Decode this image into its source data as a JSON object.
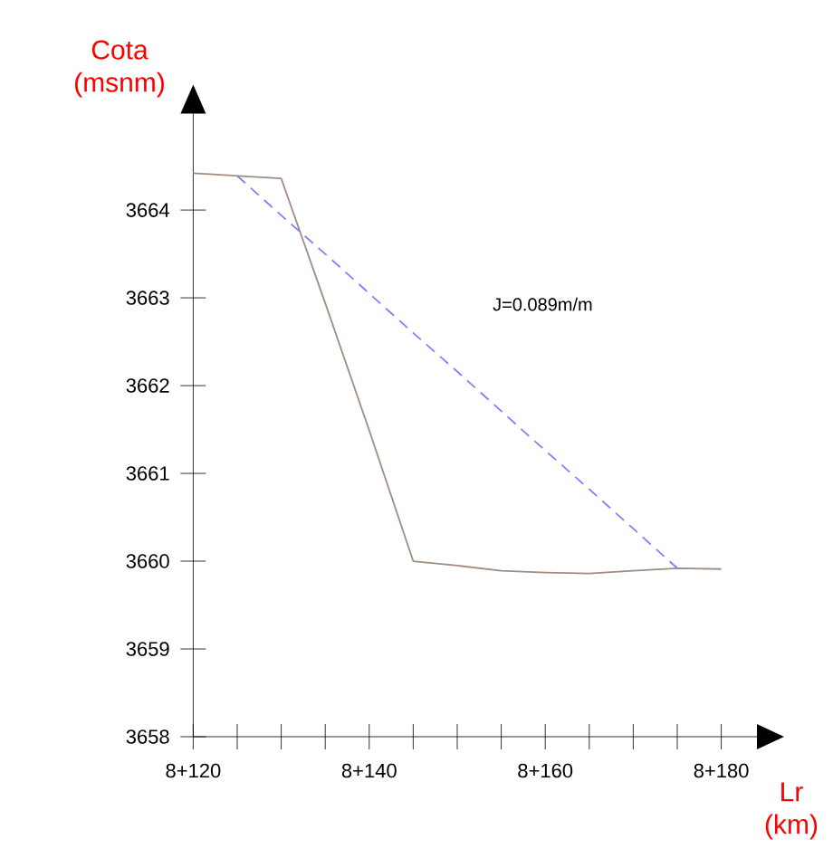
{
  "chart_data": {
    "type": "line",
    "xlabel": "Lr (km)",
    "ylabel": "Cota (msnm)",
    "categories": [
      "8+120",
      null,
      null,
      null,
      "8+140",
      null,
      null,
      null,
      "8+160",
      null,
      null,
      null,
      "8+180"
    ],
    "ylim": [
      3658,
      3665.1
    ],
    "yticks": [
      3658,
      3659,
      3660,
      3661,
      3662,
      3663,
      3664
    ],
    "grid": false,
    "marker": "none",
    "series": [
      {
        "color": "#a08c80",
        "line_style": "solid",
        "values": [
          3664.42,
          3664.39,
          3664.36,
          3662.94,
          3661.49,
          3660.0,
          3659.95,
          3659.89,
          3659.87,
          3659.86,
          3659.89,
          3659.92,
          3659.91
        ]
      },
      {
        "color": "#8080ff",
        "line_style": "dashed",
        "values": [
          null,
          3664.39,
          3663.94,
          3663.5,
          3663.05,
          3662.6,
          3662.16,
          3661.71,
          3661.26,
          3660.82,
          3660.37,
          3659.92,
          null
        ]
      }
    ],
    "annotations": [
      "J=0.089m/m"
    ]
  }
}
